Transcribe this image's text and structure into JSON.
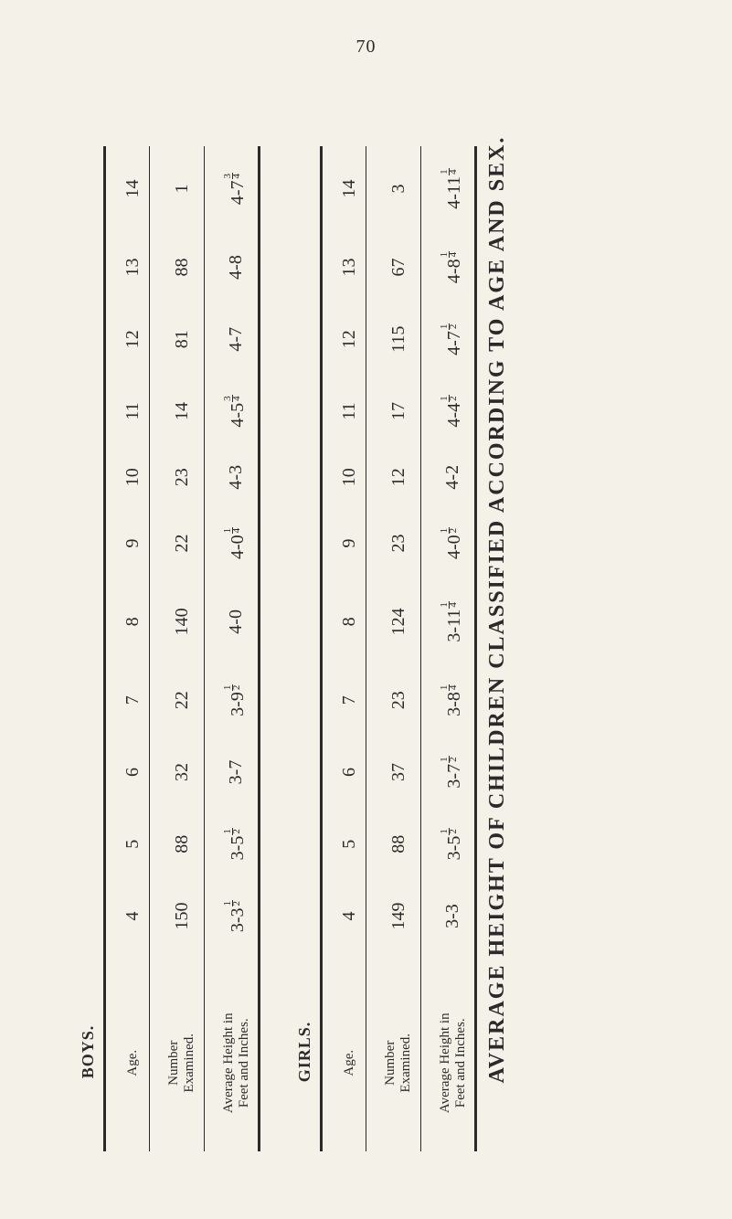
{
  "page_number": "70",
  "title": "AVERAGE HEIGHT OF CHILDREN CLASSIFIED ACCORDING TO AGE AND SEX.",
  "sections": [
    {
      "label": "BOYS.",
      "col_age": "Age.",
      "col_num": "Number\nExamined.",
      "col_height": "Average Height in\nFeet and Inches.",
      "rows": [
        {
          "age": "4",
          "num": "150",
          "height": "3-3",
          "frac": "1/2"
        },
        {
          "age": "5",
          "num": "88",
          "height": "3-5",
          "frac": "1/2"
        },
        {
          "age": "6",
          "num": "32",
          "height": "3-7",
          "frac": ""
        },
        {
          "age": "7",
          "num": "22",
          "height": "3-9",
          "frac": "1/2"
        },
        {
          "age": "8",
          "num": "140",
          "height": "4-0",
          "frac": ""
        },
        {
          "age": "9",
          "num": "22",
          "height": "4-0",
          "frac": "1/4"
        },
        {
          "age": "10",
          "num": "23",
          "height": "4-3",
          "frac": ""
        },
        {
          "age": "11",
          "num": "14",
          "height": "4-5",
          "frac": "3/4"
        },
        {
          "age": "12",
          "num": "81",
          "height": "4-7",
          "frac": ""
        },
        {
          "age": "13",
          "num": "88",
          "height": "4-8",
          "frac": ""
        },
        {
          "age": "14",
          "num": "1",
          "height": "4-7",
          "frac": "3/4"
        }
      ]
    },
    {
      "label": "GIRLS.",
      "col_age": "Age.",
      "col_num": "Number\nExamined.",
      "col_height": "Average Height in\nFeet and Inches.",
      "rows": [
        {
          "age": "4",
          "num": "149",
          "height": "3-3",
          "frac": ""
        },
        {
          "age": "5",
          "num": "88",
          "height": "3-5",
          "frac": "1/2"
        },
        {
          "age": "6",
          "num": "37",
          "height": "3-7",
          "frac": "1/2"
        },
        {
          "age": "7",
          "num": "23",
          "height": "3-8",
          "frac": "1/4"
        },
        {
          "age": "8",
          "num": "124",
          "height": "3-11",
          "frac": "1/4"
        },
        {
          "age": "9",
          "num": "23",
          "height": "4-0",
          "frac": "1/2"
        },
        {
          "age": "10",
          "num": "12",
          "height": "4-2",
          "frac": ""
        },
        {
          "age": "11",
          "num": "17",
          "height": "4-4",
          "frac": "1/2"
        },
        {
          "age": "12",
          "num": "115",
          "height": "4-7",
          "frac": "1/2"
        },
        {
          "age": "13",
          "num": "67",
          "height": "4-8",
          "frac": "1/4"
        },
        {
          "age": "14",
          "num": "3",
          "height": "4-11",
          "frac": "1/4"
        }
      ]
    }
  ],
  "colors": {
    "paper": "#f4f1e8",
    "ink": "#2a2a2a"
  }
}
